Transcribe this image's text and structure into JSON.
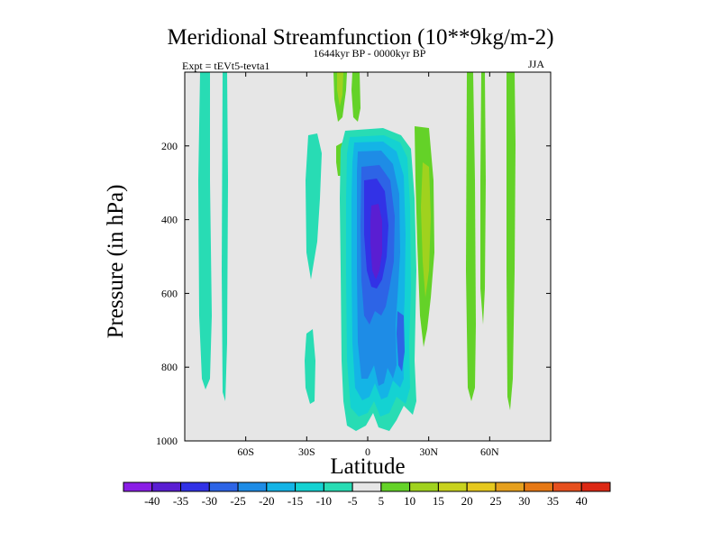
{
  "chart_data": {
    "type": "contour",
    "title": "Meridional Streamfunction (10**9kg/m-2)",
    "subtitle": "1644kyr BP - 0000kyr BP",
    "left_annotation": "Expt = tEVt5-tevta1",
    "right_annotation": "JJA",
    "xlabel": "Latitude",
    "ylabel": "Pressure (in hPa)",
    "x_ticks": [
      {
        "value": -60,
        "label": "60S"
      },
      {
        "value": -30,
        "label": "30S"
      },
      {
        "value": 0,
        "label": "0"
      },
      {
        "value": 30,
        "label": "30N"
      },
      {
        "value": 60,
        "label": "60N"
      }
    ],
    "y_ticks": [
      {
        "value": 200,
        "label": "200"
      },
      {
        "value": 400,
        "label": "400"
      },
      {
        "value": 600,
        "label": "600"
      },
      {
        "value": 800,
        "label": "800"
      },
      {
        "value": 1000,
        "label": "1000"
      }
    ],
    "xlim": [
      -90,
      90
    ],
    "ylim": [
      0,
      1000
    ],
    "y_inverted": true,
    "colorbar": {
      "levels": [
        -40,
        -35,
        -30,
        -25,
        -20,
        -15,
        -10,
        -5,
        5,
        10,
        15,
        20,
        25,
        30,
        35,
        40
      ],
      "colors": [
        "#8a1ee6",
        "#5a1ed2",
        "#3232e6",
        "#2d64e6",
        "#1e8ce6",
        "#14b4e6",
        "#14d2d2",
        "#28dcb4",
        "#e6e6e6",
        "#64d228",
        "#a0d21e",
        "#c8d21e",
        "#e6c81e",
        "#e6a01e",
        "#e67814",
        "#e6501e",
        "#dc2814"
      ]
    },
    "features": [
      {
        "name": "Equatorial negative cell",
        "lat_range": [
          -10,
          17
        ],
        "pressure_range": [
          145,
          985
        ],
        "min_value": -35
      },
      {
        "name": "Southern 60S bands",
        "lat_range": [
          -83,
          -70
        ],
        "pressure_range": [
          0,
          890
        ],
        "value": -5
      },
      {
        "name": "Subtropical positive band",
        "lat_range": [
          20,
          32
        ],
        "pressure_range": [
          140,
          970
        ],
        "max_value": 15
      },
      {
        "name": "Northern 60N bands",
        "lat_range": [
          50,
          72
        ],
        "pressure_range": [
          0,
          995
        ],
        "value": 5
      }
    ]
  }
}
